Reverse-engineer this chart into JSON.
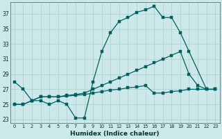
{
  "xlabel": "Humidex (Indice chaleur)",
  "background_color": "#cce8e8",
  "grid_color": "#aacfcf",
  "line_color": "#006060",
  "xlim": [
    -0.5,
    23.5
  ],
  "ylim": [
    22.5,
    38.5
  ],
  "yticks": [
    23,
    25,
    27,
    29,
    31,
    33,
    35,
    37
  ],
  "xticks": [
    0,
    1,
    2,
    3,
    4,
    5,
    6,
    7,
    8,
    9,
    10,
    11,
    12,
    13,
    14,
    15,
    16,
    17,
    18,
    19,
    20,
    21,
    22,
    23
  ],
  "line1_x": [
    0,
    1,
    2,
    3,
    4,
    5,
    6,
    7,
    8,
    9,
    10,
    11,
    12,
    13,
    14,
    15,
    16,
    17,
    18,
    19,
    20,
    22,
    23
  ],
  "line1_y": [
    28.0,
    27.0,
    25.5,
    25.5,
    25.0,
    25.5,
    25.0,
    23.2,
    23.2,
    28.0,
    32.0,
    34.5,
    36.0,
    36.5,
    37.2,
    37.5,
    38.0,
    36.5,
    36.5,
    34.5,
    32.0,
    27.0,
    27.0
  ],
  "line2_x": [
    0,
    1,
    2,
    3,
    4,
    5,
    6,
    7,
    8,
    9,
    10,
    11,
    12,
    13,
    14,
    15,
    16,
    17,
    18,
    19,
    20,
    21,
    22,
    23
  ],
  "line2_y": [
    25.0,
    25.0,
    25.5,
    26.0,
    26.0,
    26.0,
    26.2,
    26.3,
    26.5,
    27.0,
    27.5,
    28.0,
    28.5,
    29.0,
    29.5,
    30.0,
    30.5,
    31.0,
    31.5,
    32.0,
    29.0,
    27.5,
    27.0,
    27.0
  ],
  "line3_x": [
    0,
    1,
    2,
    3,
    4,
    5,
    6,
    7,
    8,
    9,
    10,
    11,
    12,
    13,
    14,
    15,
    16,
    17,
    18,
    19,
    20,
    21,
    22,
    23
  ],
  "line3_y": [
    25.0,
    25.0,
    25.5,
    26.0,
    26.0,
    26.0,
    26.1,
    26.2,
    26.3,
    26.5,
    26.7,
    26.9,
    27.0,
    27.2,
    27.3,
    27.5,
    26.5,
    26.5,
    26.7,
    26.8,
    27.0,
    27.0,
    27.0,
    27.0
  ]
}
